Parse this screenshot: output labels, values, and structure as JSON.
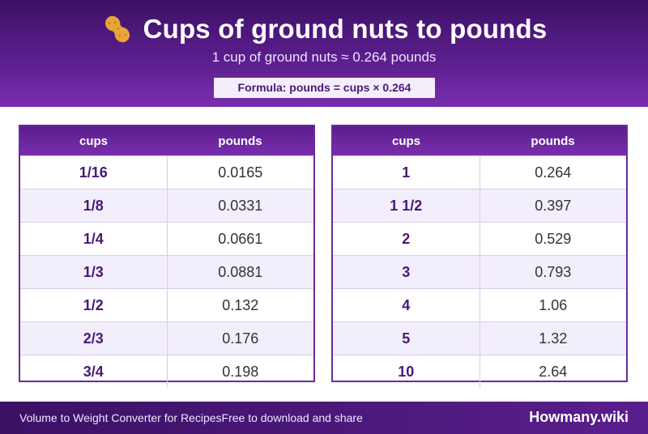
{
  "header": {
    "icon": "peanut-icon",
    "title": "Cups of ground nuts to pounds",
    "subtitle": "1 cup of ground nuts ≈ 0.264 pounds",
    "formula": "Formula: pounds = cups × 0.264"
  },
  "tables": [
    {
      "headers": [
        "cups",
        "pounds"
      ],
      "rows": [
        [
          "1/16",
          "0.0165"
        ],
        [
          "1/8",
          "0.0331"
        ],
        [
          "1/4",
          "0.0661"
        ],
        [
          "1/3",
          "0.0881"
        ],
        [
          "1/2",
          "0.132"
        ],
        [
          "2/3",
          "0.176"
        ],
        [
          "3/4",
          "0.198"
        ]
      ]
    },
    {
      "headers": [
        "cups",
        "pounds"
      ],
      "rows": [
        [
          "1",
          "0.264"
        ],
        [
          "1 1/2",
          "0.397"
        ],
        [
          "2",
          "0.529"
        ],
        [
          "3",
          "0.793"
        ],
        [
          "4",
          "1.06"
        ],
        [
          "5",
          "1.32"
        ],
        [
          "10",
          "2.64"
        ]
      ]
    }
  ],
  "footer": {
    "left_text": "Volume to Weight Converter for Recipes",
    "middle_text": "Free to download and share",
    "brand": "Howmany.wiki"
  },
  "colors": {
    "accent": "#5a1e8c",
    "accent_dark": "#3d1166",
    "row_alt": "#f3eefb"
  }
}
